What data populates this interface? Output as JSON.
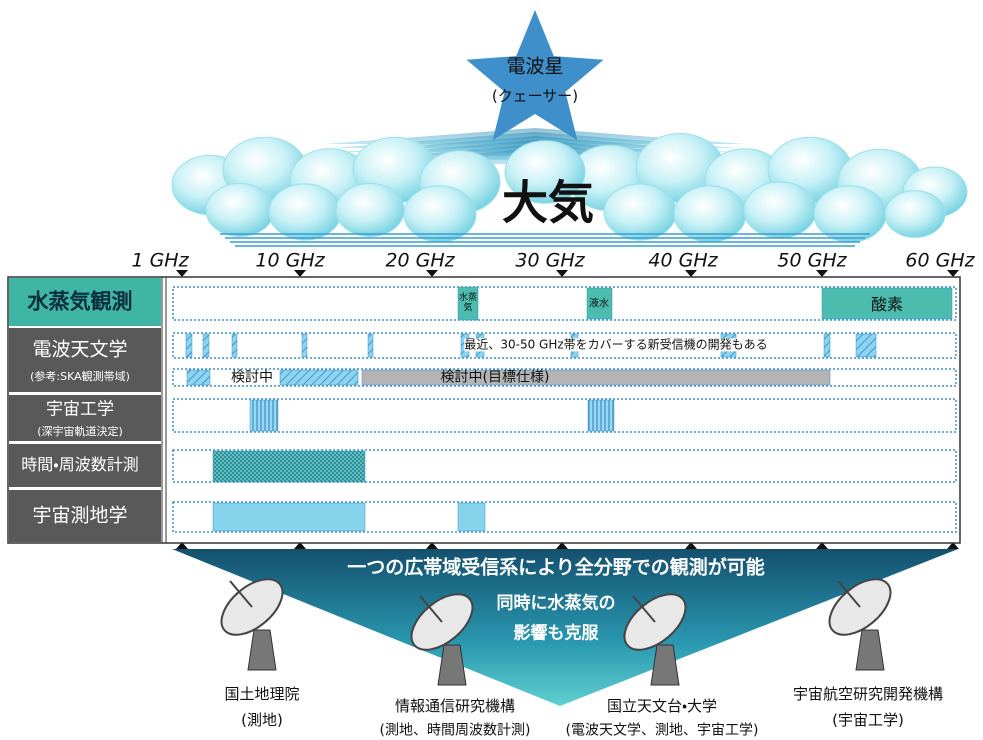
{
  "sky": {
    "source": "電波星",
    "source_note": "(クェーサー)",
    "atmosphere": "大気"
  },
  "axis": {
    "labels": [
      "1 GHz",
      "10 GHz",
      "20 GHz",
      "30 GHz",
      "40 GHz",
      "50 GHz",
      "60 GHz"
    ]
  },
  "rows": [
    {
      "label": "水蒸気観測",
      "bands": [
        "水蒸気",
        "液水",
        "酸素"
      ]
    },
    {
      "label": "電波天文学",
      "sublabel": "(参考:SKA観測帯域)",
      "note": "最近、30-50 GHz帯をカバーする新受信機の開発もある",
      "ska": [
        "検討中",
        "検討中(目標仕様)"
      ]
    },
    {
      "label": "宇宙工学",
      "sublabel": "(深宇宙軌道決定)"
    },
    {
      "label": "時間・周波数計測"
    },
    {
      "label": "宇宙測地学"
    }
  ],
  "summary": {
    "headline": "一つの広帯域受信系により全分野での観測が可能",
    "lines": [
      "同時に水蒸気の",
      "影響も克服"
    ]
  },
  "organizations": [
    {
      "name": "国土地理院",
      "role": "(測地)"
    },
    {
      "name": "情報通信研究機構",
      "role": "(測地、時間周波数計測)"
    },
    {
      "name": "国立天文台・大学",
      "role": "(電波天文学、測地、宇宙工学)"
    },
    {
      "name": "宇宙航空研究開発機構",
      "role": "(宇宙工学)"
    }
  ]
}
